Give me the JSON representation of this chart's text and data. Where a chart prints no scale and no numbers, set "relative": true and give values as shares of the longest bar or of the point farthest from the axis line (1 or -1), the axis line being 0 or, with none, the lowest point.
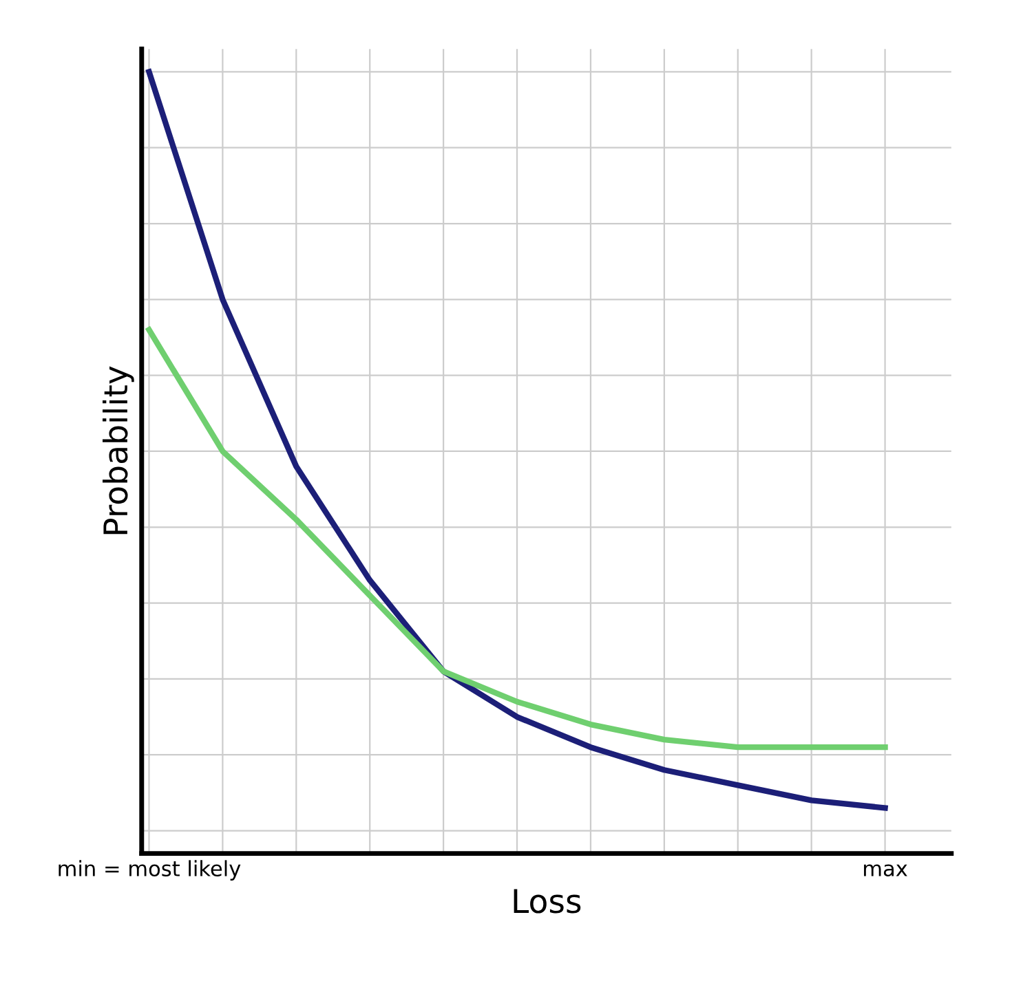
{
  "chart_data": {
    "type": "line",
    "relative": true,
    "xlabel": "Loss",
    "ylabel": "Probability",
    "tick_labels": "x",
    "grid": true,
    "marker": "none",
    "line_style": "solid",
    "categories": [
      "min = most likely",
      null,
      null,
      null,
      null,
      null,
      null,
      null,
      null,
      null,
      "max"
    ],
    "series": [
      {
        "color": "#1c1f78",
        "values": [
          1,
          0.7,
          0.48,
          0.33,
          0.21,
          0.15,
          0.11,
          0.08,
          0.06,
          0.04,
          0.03
        ]
      },
      {
        "color": "#6fcf6f",
        "values": [
          0.66,
          0.5,
          0.41,
          0.31,
          0.21,
          0.17,
          0.14,
          0.12,
          0.11,
          0.11,
          0.11
        ]
      }
    ]
  }
}
